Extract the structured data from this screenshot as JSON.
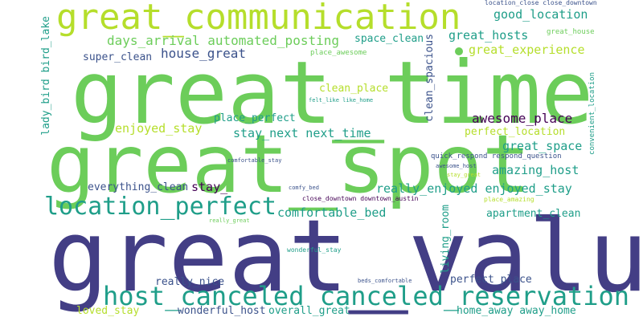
{
  "words": [
    {
      "text": "great_time",
      "color": "#6ccd5a"
    },
    {
      "text": "great_spot",
      "color": "#6ccd5a"
    },
    {
      "text": "great_value",
      "color": "#433e85"
    },
    {
      "text": "great_communication",
      "color": "#b5de2b"
    },
    {
      "text": "host_canceled canceled_reservation",
      "color": "#1f9e89"
    },
    {
      "text": "location_perfect",
      "color": "#1f9e89"
    },
    {
      "text": "days_arrival automated_posting",
      "color": "#6ccd5a"
    },
    {
      "text": "house_great",
      "color": "#3b528b"
    },
    {
      "text": "super_clean",
      "color": "#3b528b"
    },
    {
      "text": "good_location",
      "color": "#1f9e89"
    },
    {
      "text": "great_hosts",
      "color": "#1f9e89"
    },
    {
      "text": "great_experience",
      "color": "#b5de2b"
    },
    {
      "text": "space_clean",
      "color": "#1f9e89"
    },
    {
      "text": "great_house",
      "color": "#6ccd5a"
    },
    {
      "text": "place_awesome",
      "color": "#6ccd5a"
    },
    {
      "text": "clean_place",
      "color": "#b5de2b"
    },
    {
      "text": "felt_like like_home",
      "color": "#1f9e89"
    },
    {
      "text": "clean_spacious",
      "color": "#3b528b"
    },
    {
      "text": "awesome_place",
      "color": "#440154"
    },
    {
      "text": "perfect_location",
      "color": "#b5de2b"
    },
    {
      "text": "enjoyed_stay",
      "color": "#b5de2b"
    },
    {
      "text": "place_perfect",
      "color": "#1f9e89"
    },
    {
      "text": "stay_next next_time",
      "color": "#1f9e89"
    },
    {
      "text": "great_space",
      "color": "#1f9e89"
    },
    {
      "text": "amazing_host",
      "color": "#1f9e89"
    },
    {
      "text": "quick_respond respond_question",
      "color": "#3b528b"
    },
    {
      "text": "awesome_host",
      "color": "#3b528b"
    },
    {
      "text": "stay_great",
      "color": "#b5de2b"
    },
    {
      "text": "everything_clean",
      "color": "#3b528b"
    },
    {
      "text": "stay_",
      "color": "#440154"
    },
    {
      "text": "really_enjoyed enjoyed_stay",
      "color": "#1f9e89"
    },
    {
      "text": "comfortable_bed",
      "color": "#1f9e89"
    },
    {
      "text": "comfortable_stay",
      "color": "#3b528b"
    },
    {
      "text": "comfy_bed",
      "color": "#3b528b"
    },
    {
      "text": "close_downtown downtown_austin",
      "color": "#440154"
    },
    {
      "text": "place_amazing",
      "color": "#b5de2b"
    },
    {
      "text": "apartment_clean",
      "color": "#1f9e89"
    },
    {
      "text": "really_great",
      "color": "#6ccd5a"
    },
    {
      "text": "wonderful_stay",
      "color": "#1f9e89"
    },
    {
      "text": "really_nice",
      "color": "#3b528b"
    },
    {
      "text": "beds_comfortable",
      "color": "#3b528b"
    },
    {
      "text": "perfect_place",
      "color": "#3b528b"
    },
    {
      "text": "loved_stay",
      "color": "#b5de2b"
    },
    {
      "text": "wonderful_host",
      "color": "#3b528b"
    },
    {
      "text": "overall_great",
      "color": "#1f9e89"
    },
    {
      "text": "home_away away_home",
      "color": "#1f9e89"
    },
    {
      "text": "lady_bird bird_lake",
      "color": "#1f9e89"
    },
    {
      "text": "living_room",
      "color": "#1f9e89"
    },
    {
      "text": "location_close close_downtown",
      "color": "#3b528b"
    },
    {
      "text": "convenient_location",
      "color": "#1f9e89"
    }
  ],
  "dot_color": "#6ccd5a"
}
